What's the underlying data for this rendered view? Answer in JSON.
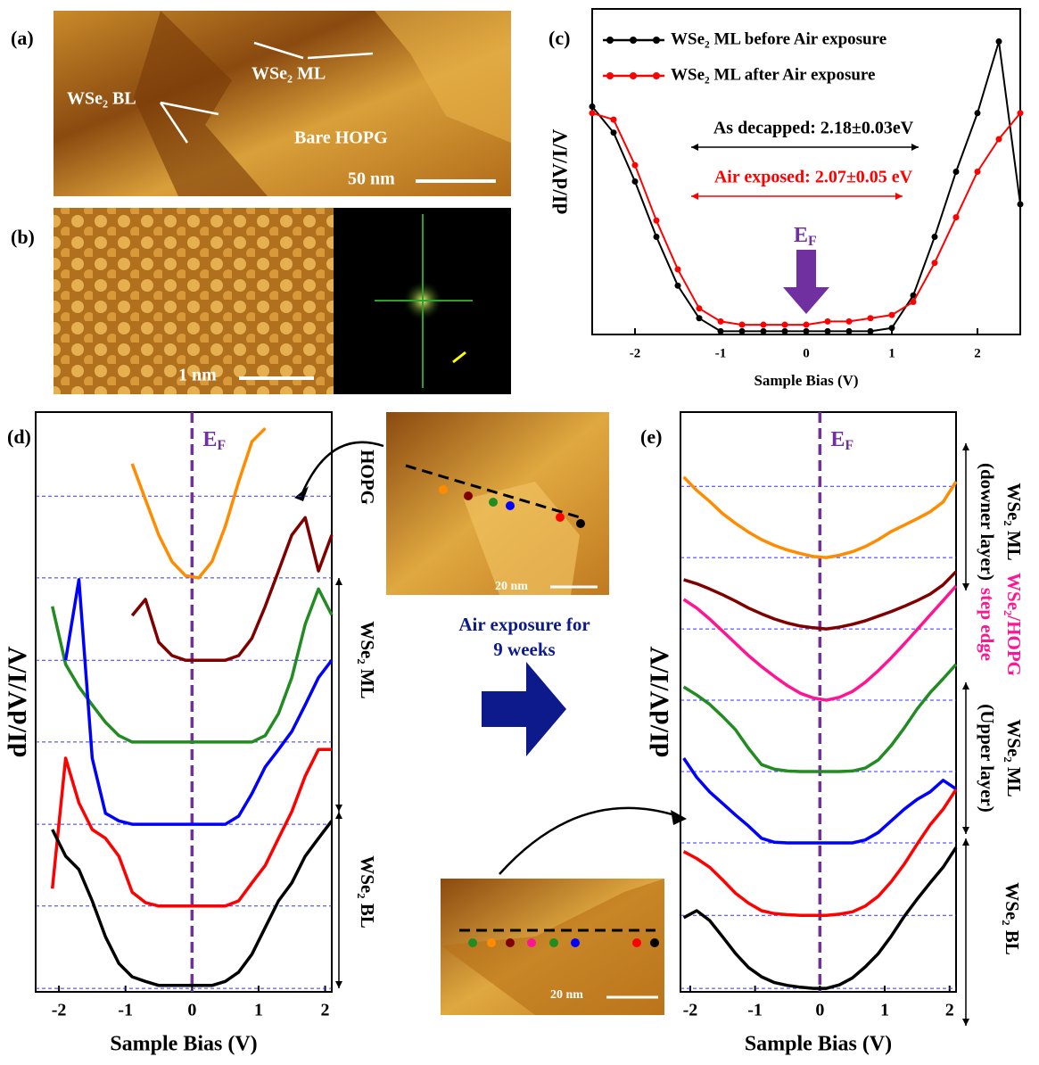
{
  "panels": {
    "a": {
      "label": "(a)",
      "annotations": [
        "WSe₂ ML",
        "WSe₂ BL",
        "Bare HOPG"
      ],
      "scale_bar": "50 nm"
    },
    "b": {
      "label": "(b)",
      "scale_bar": "1 nm"
    },
    "d_inset": {
      "scale_bar": "20 nm"
    },
    "e_inset": {
      "scale_bar": "20 nm"
    }
  },
  "middle_arrow": {
    "lines": [
      "Air exposure for",
      "9 weeks"
    ]
  },
  "chart_data": [
    {
      "type": "line",
      "label": "(c)",
      "xlabel": "Sample Bias (V)",
      "ylabel": "dI/dV/I/V",
      "x": [
        -2.5,
        -2.25,
        -2,
        -1.75,
        -1.5,
        -1.25,
        -1,
        -0.75,
        -0.5,
        -0.25,
        0,
        0.25,
        0.5,
        0.75,
        1,
        1.25,
        1.5,
        1.75,
        2,
        2.25,
        2.5
      ],
      "xlim": [
        -2.5,
        2.5
      ],
      "xticks": [
        -2,
        -1,
        0,
        1,
        2
      ],
      "ylim": [
        0,
        1
      ],
      "series": [
        {
          "name": "WSe₂ ML before Air exposure",
          "color": "#000000",
          "values": [
            0.7,
            0.62,
            0.47,
            0.3,
            0.15,
            0.05,
            0.01,
            0.01,
            0.01,
            0.01,
            0.01,
            0.01,
            0.01,
            0.01,
            0.02,
            0.12,
            0.3,
            0.5,
            0.68,
            0.9,
            0.4
          ]
        },
        {
          "name": "WSe₂ ML after Air exposure",
          "color": "#ff0000",
          "values": [
            0.68,
            0.66,
            0.52,
            0.35,
            0.2,
            0.08,
            0.04,
            0.03,
            0.03,
            0.03,
            0.03,
            0.04,
            0.04,
            0.05,
            0.06,
            0.1,
            0.22,
            0.36,
            0.5,
            0.6,
            0.68
          ]
        }
      ],
      "annotations": [
        {
          "text": "As decapped: 2.18±0.03eV",
          "color": "#000000"
        },
        {
          "text": "Air exposed: 2.07±0.05 eV",
          "color": "#ff0000"
        }
      ],
      "ef_label": {
        "text": "E",
        "sub": "F"
      }
    },
    {
      "type": "line",
      "label": "(d)",
      "xlabel": "Sample Bias (V)",
      "ylabel": "dI/dV/I/V",
      "x": [
        -2.1,
        -1.9,
        -1.7,
        -1.5,
        -1.3,
        -1.1,
        -0.9,
        -0.7,
        -0.5,
        -0.3,
        -0.1,
        0.1,
        0.3,
        0.5,
        0.7,
        0.9,
        1.1,
        1.3,
        1.5,
        1.7,
        1.9,
        2.1
      ],
      "xlim": [
        -2.35,
        2.1
      ],
      "xticks": [
        -2,
        -1,
        0,
        1,
        2
      ],
      "ylim": [
        0,
        100
      ],
      "hlines": [
        85.5,
        71.4,
        57.2,
        43.1,
        28.9,
        14.8,
        0.6
      ],
      "vline": 0,
      "series": [
        {
          "color": "#ff8c00",
          "values": [
            null,
            null,
            null,
            null,
            null,
            null,
            91.1,
            84.9,
            78.8,
            74.2,
            71.8,
            71.4,
            74.2,
            80.3,
            88,
            94.9,
            97.2,
            null,
            null,
            null,
            null,
            null
          ]
        },
        {
          "color": "#800000",
          "values": [
            null,
            null,
            null,
            null,
            null,
            null,
            64.9,
            67.7,
            60.3,
            58,
            57.2,
            57.2,
            57.2,
            57.2,
            58,
            61,
            66.5,
            72.6,
            78.8,
            81.8,
            72.6,
            78.8
          ]
        },
        {
          "color": "#228b22",
          "values": [
            66.5,
            56.5,
            52.6,
            49.5,
            46.5,
            44.2,
            43.1,
            43.1,
            43.1,
            43.1,
            43.1,
            43.1,
            43.1,
            43.1,
            43.1,
            43.1,
            44.2,
            48,
            54.2,
            63.4,
            69.5,
            65
          ]
        },
        {
          "color": "#0000ff",
          "values": [
            null,
            57.2,
            71.1,
            40.3,
            30.8,
            29.5,
            28.9,
            28.9,
            28.9,
            28.9,
            28.9,
            28.9,
            28.9,
            28.9,
            30.3,
            34.2,
            38.8,
            41.8,
            44.9,
            49.5,
            54.2,
            57.2
          ]
        },
        {
          "color": "#ff0000",
          "values": [
            17.8,
            40.3,
            32.6,
            28,
            26.5,
            23.4,
            17.2,
            15.4,
            14.8,
            14.8,
            14.8,
            14.8,
            14.8,
            14.8,
            15.7,
            18.8,
            21.8,
            26.5,
            31.1,
            37.2,
            41.8,
            41.8
          ]
        },
        {
          "color": "#000000",
          "values": [
            28,
            23.4,
            21.1,
            15.7,
            9.5,
            4.9,
            2.6,
            1.8,
            1.1,
            1.1,
            1.1,
            1.1,
            1.1,
            1.8,
            3.4,
            6.5,
            11.1,
            15.7,
            18.8,
            23.4,
            26.5,
            29.5
          ]
        }
      ],
      "side_labels": [
        {
          "lines": [
            "HOPG"
          ],
          "color": "#000000"
        },
        {
          "lines": [
            "WSe₂ ML"
          ],
          "color": "#000000"
        },
        {
          "lines": [
            "WSe₂ BL"
          ],
          "color": "#000000"
        }
      ],
      "ef_label": {
        "text": "E",
        "sub": "F"
      }
    },
    {
      "type": "line",
      "label": "(e)",
      "xlabel": "Sample Bias (V)",
      "ylabel": "dI/dV/I/V",
      "x": [
        -2.1,
        -1.9,
        -1.7,
        -1.5,
        -1.3,
        -1.1,
        -0.9,
        -0.7,
        -0.5,
        -0.3,
        -0.1,
        0.1,
        0.3,
        0.5,
        0.7,
        0.9,
        1.1,
        1.3,
        1.5,
        1.7,
        1.9,
        2.1
      ],
      "xlim": [
        -2.15,
        2.1
      ],
      "xticks": [
        -2,
        -1,
        0,
        1,
        2
      ],
      "ylim": [
        0,
        100
      ],
      "hlines": [
        87.2,
        74.9,
        62.6,
        50.3,
        38,
        25.7,
        13.2,
        0.6
      ],
      "vline": 0,
      "series": [
        {
          "color": "#ff8c00",
          "values": [
            88.8,
            86.5,
            84.6,
            82.5,
            80.8,
            79.3,
            78,
            77,
            76.2,
            75.6,
            75.1,
            74.9,
            75.3,
            75.9,
            76.8,
            78,
            79.4,
            80.5,
            81.6,
            82.8,
            84.5,
            88
          ]
        },
        {
          "color": "#800000",
          "values": [
            71.1,
            70.4,
            69.5,
            68.5,
            67.4,
            66.2,
            65.2,
            64.3,
            63.6,
            63.1,
            62.8,
            62.6,
            62.9,
            63.4,
            64,
            64.8,
            65.6,
            66.5,
            67.5,
            68.6,
            70.2,
            72.5
          ]
        },
        {
          "color": "#ff1493",
          "values": [
            67.7,
            66.2,
            64.3,
            62.2,
            60.1,
            58,
            56.1,
            54.4,
            52.8,
            51.5,
            50.7,
            50.3,
            50.8,
            51.8,
            53.4,
            55.4,
            57.6,
            60,
            62.5,
            65,
            67.5,
            70
          ]
        },
        {
          "color": "#228b22",
          "values": [
            52.6,
            51.2,
            49.6,
            47.5,
            45.2,
            42,
            39.2,
            38.4,
            38.1,
            38,
            38,
            38,
            38,
            38.1,
            38.6,
            40,
            42.5,
            45.5,
            48.8,
            51.6,
            54,
            56.5
          ]
        },
        {
          "color": "#0000ff",
          "values": [
            40.3,
            37,
            34.5,
            32.5,
            30.5,
            28.6,
            26.5,
            25.8,
            25.7,
            25.7,
            25.7,
            25.7,
            25.7,
            25.7,
            26.2,
            27.5,
            29.5,
            31.5,
            33.2,
            34.5,
            36.5,
            35
          ]
        },
        {
          "color": "#ff0000",
          "values": [
            24.2,
            23,
            21.5,
            19.3,
            17,
            15.3,
            14,
            13.5,
            13.3,
            13.2,
            13.2,
            13.2,
            13.4,
            13.8,
            14.8,
            16.5,
            19,
            22,
            25.5,
            28.8,
            31.5,
            34.9
          ]
        },
        {
          "color": "#000000",
          "values": [
            12.8,
            14,
            12.3,
            9.5,
            6.6,
            4.2,
            2.6,
            1.6,
            1.1,
            0.8,
            0.6,
            0.6,
            1.2,
            2.4,
            4.3,
            6.6,
            9.6,
            13,
            16,
            18.8,
            21.5,
            24.9
          ]
        }
      ],
      "side_labels": [
        {
          "lines": [
            "WSe₂ ML",
            "(downer layer)"
          ],
          "color": "#000000"
        },
        {
          "lines": [
            "WSe₂/HOPG",
            "step edge"
          ],
          "color": "#ff1493"
        },
        {
          "lines": [
            "WSe₂ ML",
            "(Upper layer)"
          ],
          "color": "#000000"
        },
        {
          "lines": [
            "WSe₂ BL"
          ],
          "color": "#000000"
        }
      ],
      "ef_label": {
        "text": "E",
        "sub": "F"
      }
    }
  ]
}
